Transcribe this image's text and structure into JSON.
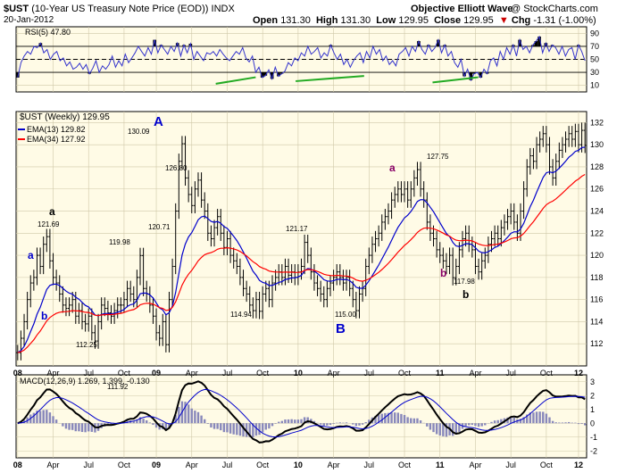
{
  "header": {
    "symbol": "$UST",
    "description": "(10-Year US Treasury Note Price (EOD))",
    "exchange": "INDX",
    "date": "20-Jan-2012",
    "open_label": "Open",
    "open": "131.30",
    "high_label": "High",
    "high": "131.30",
    "low_label": "Low",
    "low": "129.95",
    "close_label": "Close",
    "close": "129.95",
    "chg_label": "Chg",
    "chg": "-1.31 (-1.00%)",
    "down_arrow_icon": "down-arrow-icon",
    "watermark": "Objective Elliott Wave",
    "credit": "@ StockCharts.com"
  },
  "chart_data": [
    {
      "type": "line",
      "panel": "rsi",
      "title": "RSI(5) 47.80",
      "ylim": [
        0,
        100
      ],
      "yticks": [
        10,
        30,
        50,
        70,
        90
      ],
      "reference_lines": [
        30,
        50,
        70
      ],
      "color": "#3333cc",
      "values": [
        22,
        45,
        55,
        62,
        58,
        70,
        68,
        75,
        60,
        65,
        50,
        58,
        62,
        48,
        52,
        40,
        46,
        35,
        38,
        44,
        35,
        42,
        28,
        36,
        48,
        30,
        40,
        35,
        42,
        55,
        38,
        48,
        40,
        58,
        45,
        52,
        60,
        70,
        62,
        55,
        68,
        58,
        80,
        60,
        72,
        65,
        58,
        70,
        62,
        75,
        55,
        72,
        60,
        74,
        50,
        62,
        55,
        48,
        60,
        58,
        62,
        55,
        65,
        58,
        52,
        48,
        55,
        62,
        58,
        68,
        52,
        46,
        55,
        30,
        38,
        22,
        25,
        34,
        20,
        38,
        24,
        28,
        32,
        45,
        40,
        52,
        48,
        60,
        55,
        70,
        58,
        62,
        68,
        52,
        60,
        55,
        72,
        60,
        50,
        58,
        42,
        50,
        38,
        48,
        55,
        60,
        45,
        62,
        52,
        70,
        58,
        65,
        48,
        55,
        42,
        48,
        40,
        58,
        62,
        68,
        55,
        70,
        62,
        78,
        65,
        58,
        72,
        62,
        68,
        80,
        60,
        72,
        55,
        62,
        45,
        38,
        50,
        24,
        35,
        18,
        28,
        30,
        22,
        35,
        28,
        48,
        52,
        40,
        62,
        50,
        68,
        58,
        72,
        55,
        80,
        65,
        70,
        60,
        72,
        78,
        85,
        60,
        75,
        62,
        72,
        68,
        58,
        70,
        55,
        65,
        68,
        50,
        72,
        62,
        48
      ],
      "overbought_fill_color": "#000000",
      "divergence_lines_color": "#22aa22"
    },
    {
      "type": "bar",
      "panel": "price",
      "title": "$UST (Weekly) 129.95",
      "ylim": [
        110,
        133
      ],
      "yticks": [
        112,
        114,
        116,
        118,
        120,
        122,
        124,
        126,
        128,
        130,
        132
      ],
      "x_ticks": [
        "08",
        "Apr",
        "Jul",
        "Oct",
        "09",
        "Apr",
        "Jul",
        "Oct",
        "10",
        "Apr",
        "Jul",
        "Oct",
        "11",
        "Apr",
        "Jul",
        "Oct",
        "12"
      ],
      "series": [
        {
          "name": "$UST (Weekly) 129.95",
          "color": "#000000",
          "close": [
            111.2,
            112.5,
            114.0,
            116.0,
            117.5,
            118.0,
            120.0,
            119.0,
            121.0,
            121.69,
            119.5,
            118.0,
            117.5,
            116.5,
            115.5,
            115.2,
            115.5,
            116.0,
            114.5,
            115.0,
            114.0,
            113.8,
            114.5,
            113.0,
            112.25,
            114.0,
            115.5,
            115.2,
            114.8,
            114.5,
            115.0,
            115.5,
            115.5,
            116.0,
            117.0,
            116.5,
            116.0,
            118.0,
            119.98,
            117.0,
            116.5,
            115.5,
            114.5,
            113.0,
            112.5,
            114.0,
            111.92,
            116.0,
            119.0,
            124.0,
            128.5,
            130.09,
            127.0,
            125.5,
            124.5,
            126.0,
            126.8,
            125.0,
            124.0,
            122.0,
            121.5,
            122.5,
            123.5,
            122.0,
            120.71,
            121.5,
            120.0,
            119.5,
            119.0,
            118.0,
            117.0,
            116.5,
            115.5,
            115.0,
            116.0,
            114.94,
            116.5,
            117.0,
            116.0,
            117.5,
            118.0,
            118.5,
            118.0,
            119.0,
            118.2,
            118.5,
            118.0,
            118.5,
            119.0,
            121.17,
            120.0,
            118.5,
            117.5,
            117.0,
            116.5,
            116.0,
            117.0,
            117.5,
            118.0,
            118.5,
            118.0,
            117.5,
            118.0,
            117.0,
            116.0,
            115.0,
            116.5,
            117.0,
            119.0,
            120.0,
            121.0,
            121.5,
            122.0,
            123.0,
            123.5,
            124.0,
            125.0,
            125.5,
            126.0,
            125.5,
            126.0,
            125.0,
            126.0,
            127.0,
            127.75,
            126.0,
            125.0,
            123.0,
            122.0,
            121.5,
            120.5,
            120.0,
            119.5,
            119.0,
            120.0,
            117.98,
            119.0,
            120.5,
            121.5,
            122.0,
            121.0,
            120.5,
            119.0,
            118.5,
            119.5,
            120.0,
            121.0,
            121.5,
            122.0,
            121.5,
            122.5,
            123.0,
            123.5,
            124.0,
            123.0,
            122.0,
            124.0,
            126.0,
            128.0,
            129.0,
            128.5,
            130.0,
            130.5,
            131.0,
            130.0,
            128.0,
            127.0,
            128.5,
            129.5,
            130.0,
            130.5,
            131.0,
            130.5,
            131.2,
            130.0,
            131.3,
            129.95
          ]
        },
        {
          "name": "EMA(13) 129.82",
          "color": "#0000cc"
        },
        {
          "name": "EMA(34) 127.92",
          "color": "#ff0000"
        }
      ],
      "annotations": [
        {
          "text": "121.69",
          "color": "#000000"
        },
        {
          "text": "119.98",
          "color": "#000000"
        },
        {
          "text": "112.25",
          "color": "#000000"
        },
        {
          "text": "111.92",
          "color": "#000000"
        },
        {
          "text": "130.09",
          "color": "#000000"
        },
        {
          "text": "126.80",
          "color": "#000000"
        },
        {
          "text": "120.71",
          "color": "#000000"
        },
        {
          "text": "114.94",
          "color": "#000000"
        },
        {
          "text": "121.17",
          "color": "#000000"
        },
        {
          "text": "115.00",
          "color": "#000000"
        },
        {
          "text": "127.75",
          "color": "#000000"
        },
        {
          "text": "117.98",
          "color": "#000000"
        },
        {
          "text": "A",
          "color": "#0000cc"
        },
        {
          "text": "B",
          "color": "#0000cc"
        },
        {
          "text": "a",
          "color": "#0000cc"
        },
        {
          "text": "b",
          "color": "#0000cc"
        },
        {
          "text": "a",
          "color": "#000000"
        },
        {
          "text": "b",
          "color": "#000000"
        },
        {
          "text": "a",
          "color": "#880066"
        },
        {
          "text": "b",
          "color": "#880066"
        }
      ]
    },
    {
      "type": "line",
      "panel": "macd",
      "title": "MACD(12,26,9) 1.269, 1.399, -0.130",
      "ylim": [
        -2.5,
        3.5
      ],
      "yticks": [
        -2,
        -1,
        0,
        1,
        2,
        3
      ],
      "x_ticks": [
        "08",
        "Apr",
        "Jul",
        "Oct",
        "09",
        "Apr",
        "Jul",
        "Oct",
        "10",
        "Apr",
        "Jul",
        "Oct",
        "11",
        "Apr",
        "Jul",
        "Oct",
        "12"
      ],
      "series": [
        {
          "name": "MACD",
          "color": "#000000"
        },
        {
          "name": "Signal",
          "color": "#0000cc"
        },
        {
          "name": "Histogram",
          "color": "#8888bb"
        }
      ]
    }
  ]
}
